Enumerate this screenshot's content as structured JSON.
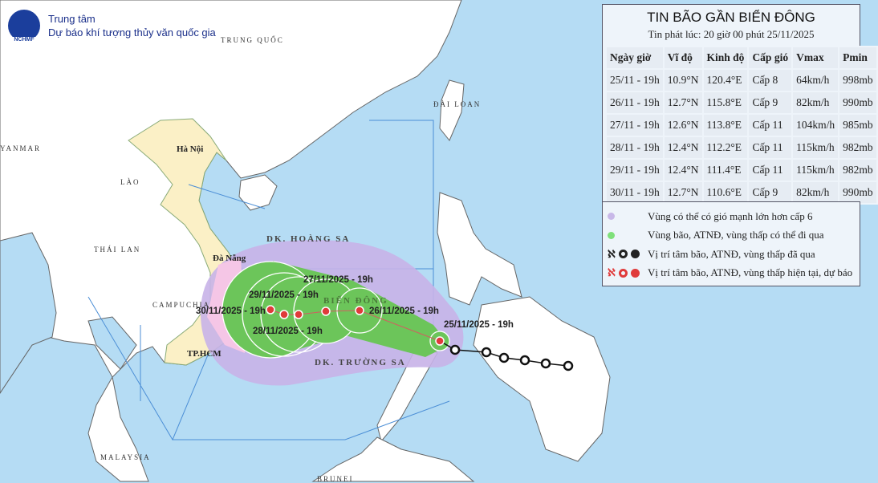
{
  "header": {
    "org_line1": "Trung tâm",
    "org_line2": "Dự báo khí tượng thủy văn quốc gia",
    "logo_text": "NCHMF"
  },
  "bulletin": {
    "title": "TIN BÃO GẦN BIỂN ĐÔNG",
    "issued": "Tin phát lúc: 20 giờ 00 phút 25/11/2025",
    "columns": [
      "Ngày giờ",
      "Vĩ độ",
      "Kinh độ",
      "Cấp gió",
      "Vmax",
      "Pmin"
    ],
    "rows": [
      [
        "25/11 - 19h",
        "10.9°N",
        "120.4°E",
        "Cấp 8",
        "64km/h",
        "998mb"
      ],
      [
        "26/11 - 19h",
        "12.7°N",
        "115.8°E",
        "Cấp 9",
        "82km/h",
        "990mb"
      ],
      [
        "27/11 - 19h",
        "12.6°N",
        "113.8°E",
        "Cấp 11",
        "104km/h",
        "985mb"
      ],
      [
        "28/11 - 19h",
        "12.4°N",
        "112.2°E",
        "Cấp 11",
        "115km/h",
        "982mb"
      ],
      [
        "29/11 - 19h",
        "12.4°N",
        "111.4°E",
        "Cấp 11",
        "115km/h",
        "982mb"
      ],
      [
        "30/11 - 19h",
        "12.7°N",
        "110.6°E",
        "Cấp 9",
        "82km/h",
        "990mb"
      ]
    ]
  },
  "legend": [
    {
      "label": "Vùng có thể có gió mạnh lớn hơn cấp 6",
      "color": "#c8b8e8"
    },
    {
      "label": "Vùng bão, ATNĐ, vùng thấp có thể đi qua",
      "color": "#7fe07a"
    },
    {
      "label": "Vị trí tâm bão, ATNĐ, vùng thấp đã qua",
      "color": "#222222"
    },
    {
      "label": "Vị trí tâm bão, ATNĐ, vùng thấp hiện tại, dự báo",
      "color": "#e03a3a"
    }
  ],
  "map": {
    "countries": [
      "TRUNG QUỐC",
      "ĐÀI LOAN",
      "YANMAR",
      "LÀO",
      "THÁI LAN",
      "CAMPUCHIA",
      "MALAYSIA",
      "BRUNEI"
    ],
    "cities": [
      "Hà Nội",
      "Đà Nẵng",
      "TP.HCM"
    ],
    "seas": [
      "DK. HOÀNG SA",
      "DK. TRƯỜNG SA",
      "BIỂN ĐÔNG"
    ],
    "track_labels": [
      "25/11/2025 - 19h",
      "26/11/2025 - 19h",
      "27/11/2025 - 19h",
      "28/11/2025 - 19h",
      "29/11/2025 - 19h",
      "30/11/2025 - 19h"
    ]
  }
}
